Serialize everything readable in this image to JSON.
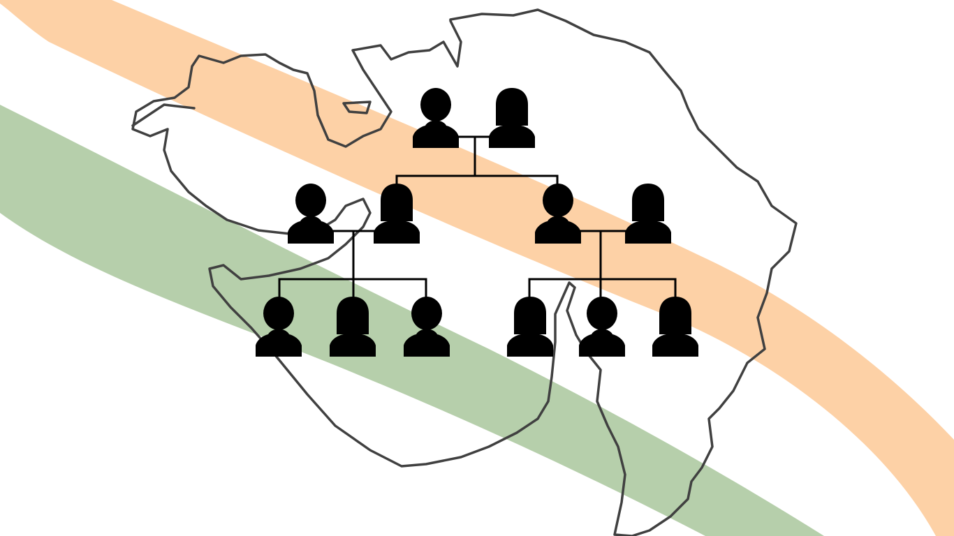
{
  "colors": {
    "background": "#ffffff",
    "saffron_band": "#fdd1a6",
    "green_band": "#b6cfab",
    "map_outline": "#404040",
    "figures": "#000000"
  },
  "map": {
    "icon": "gujarat-state-outline"
  },
  "family_tree": {
    "levels": 3,
    "generations": [
      {
        "name": "grandparents",
        "members": [
          {
            "icon": "male-person-icon"
          },
          {
            "icon": "female-person-icon"
          }
        ]
      },
      {
        "name": "parents",
        "couples": [
          {
            "members": [
              {
                "icon": "male-person-icon"
              },
              {
                "icon": "female-person-icon"
              }
            ]
          },
          {
            "members": [
              {
                "icon": "male-person-icon"
              },
              {
                "icon": "female-person-icon"
              }
            ]
          }
        ]
      },
      {
        "name": "children",
        "groups": [
          {
            "members": [
              {
                "icon": "male-person-icon"
              },
              {
                "icon": "female-person-icon"
              },
              {
                "icon": "male-person-icon"
              }
            ]
          },
          {
            "members": [
              {
                "icon": "female-person-icon"
              },
              {
                "icon": "male-person-icon"
              },
              {
                "icon": "female-person-icon"
              }
            ]
          }
        ]
      }
    ]
  }
}
